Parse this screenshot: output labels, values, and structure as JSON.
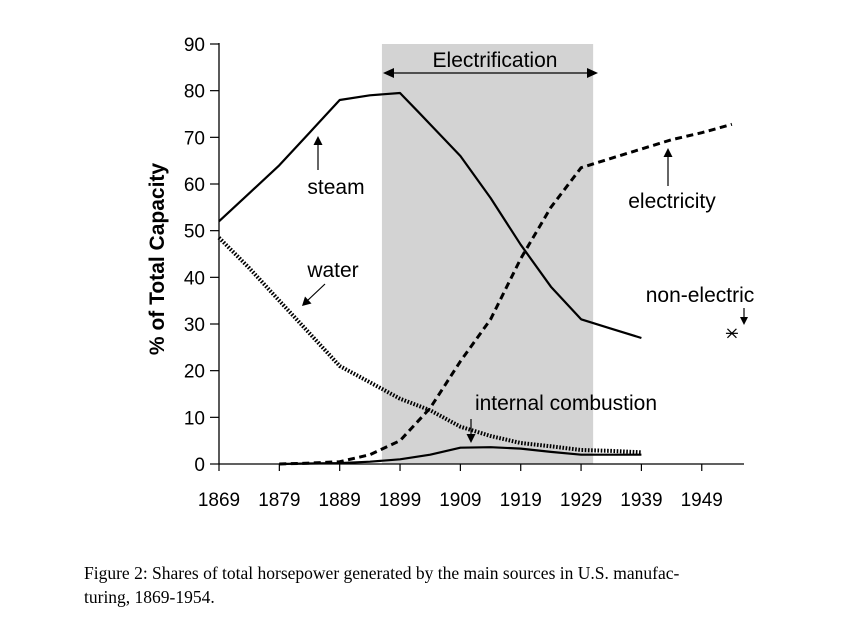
{
  "chart_data": {
    "type": "line",
    "ylabel": "% of Total Capacity",
    "xlabel": "",
    "x_ticks": [
      "1869",
      "1879",
      "1889",
      "1899",
      "1909",
      "1919",
      "1929",
      "1939",
      "1949"
    ],
    "y_ticks": [
      "0",
      "10",
      "20",
      "30",
      "40",
      "50",
      "60",
      "70",
      "80",
      "90"
    ],
    "xlim": [
      1869,
      1956
    ],
    "ylim": [
      0,
      90
    ],
    "shaded_region": {
      "label": "Electrification",
      "x_start": 1896,
      "x_end": 1931,
      "color": "#d3d3d3"
    },
    "series": [
      {
        "name": "steam",
        "style": "solid",
        "x": [
          1869,
          1874,
          1879,
          1884,
          1889,
          1894,
          1899,
          1902,
          1909,
          1914,
          1919,
          1924,
          1929,
          1934,
          1939
        ],
        "y": [
          52,
          58,
          64,
          71,
          78,
          79,
          79.5,
          75.5,
          66,
          57,
          47,
          38,
          31,
          29,
          27
        ]
      },
      {
        "name": "water",
        "style": "dotted",
        "x": [
          1869,
          1874,
          1879,
          1884,
          1889,
          1894,
          1899,
          1904,
          1909,
          1914,
          1919,
          1924,
          1929,
          1934,
          1939
        ],
        "y": [
          48.5,
          42,
          35,
          28,
          21,
          17.5,
          14,
          11.5,
          8,
          6,
          4.5,
          3.8,
          3,
          2.8,
          2.5
        ]
      },
      {
        "name": "electricity",
        "style": "dashed",
        "x": [
          1879,
          1884,
          1889,
          1894,
          1899,
          1904,
          1909,
          1914,
          1919,
          1924,
          1929,
          1934,
          1939,
          1944,
          1949,
          1954
        ],
        "y": [
          0,
          0.2,
          0.5,
          2,
          5,
          12,
          22,
          31,
          44,
          55,
          63.5,
          65.5,
          67.5,
          69.5,
          71,
          72.8
        ]
      },
      {
        "name": "internal combustion",
        "style": "solid",
        "x": [
          1879,
          1884,
          1889,
          1894,
          1899,
          1904,
          1909,
          1914,
          1919,
          1924,
          1929,
          1934,
          1939
        ],
        "y": [
          0,
          0.1,
          0.2,
          0.5,
          1,
          2,
          3.5,
          3.6,
          3.3,
          2.6,
          2,
          2,
          2
        ]
      },
      {
        "name": "non-electric",
        "style": "point",
        "x": [
          1954
        ],
        "y": [
          28
        ]
      }
    ],
    "annotations": [
      "Electrification",
      "steam",
      "water",
      "electricity",
      "non-electric",
      "internal combustion"
    ],
    "grid": false,
    "legend": "none"
  },
  "caption": {
    "line1": "Figure 2: Shares of total horsepower generated by the main sources in U.S. manufac-",
    "line2": "turing, 1869-1954."
  }
}
